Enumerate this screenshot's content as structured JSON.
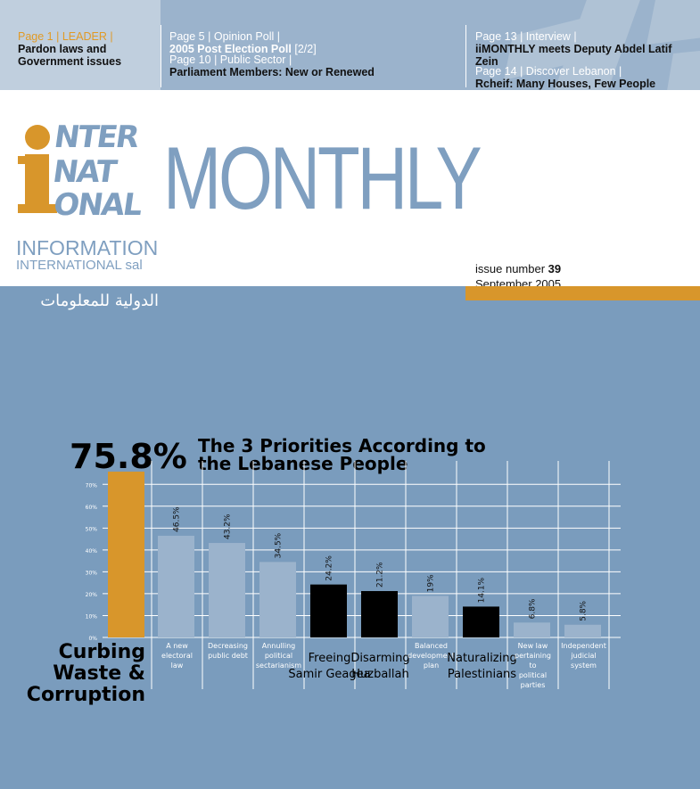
{
  "toc": {
    "item1": {
      "page": "Page 1",
      "section": "LEADER",
      "title": "Pardon laws and Government issues"
    },
    "item2": {
      "page": "Page 5",
      "section": "Opinion Poll",
      "title": "2005 Post Election Poll",
      "part": "[2/2]"
    },
    "item3": {
      "page": "Page 10",
      "section": "Public Sector",
      "title": "Parliament Members: New or Renewed"
    },
    "item4": {
      "page": "Page 13",
      "section": "Interview",
      "title": "iiMONTHLY meets Deputy Abdel Latif Zein"
    },
    "item5": {
      "page": "Page 14",
      "section": "Discover Lebanon",
      "title": "Rcheif: Many Houses, Few People"
    }
  },
  "masthead": {
    "monthly": "MONTHLY",
    "logo_i": "i",
    "logo_lines": [
      "NTER",
      "NAT",
      "ONAL"
    ],
    "info_line1": "INFORMATION",
    "info_line2": "INTERNATIONAL sal",
    "issue_label": "issue number",
    "issue_number": "39",
    "date": "September 2005",
    "arabic": "الدولية للمعلومات"
  },
  "colors": {
    "orange": "#d8962b",
    "blue_bg": "#7a9cbd",
    "bar_light": "#9bb3cc",
    "bar_dark": "#000000"
  },
  "chart_data": {
    "type": "bar",
    "title": "The 3 Priorities According to the Lebanese People",
    "highlight_value": "75.8%",
    "yticks": [
      "0%",
      "10%",
      "20%",
      "30%",
      "40%",
      "50%",
      "60%",
      "70%"
    ],
    "ylim": [
      0,
      80
    ],
    "categories": [
      "Curbing Waste & Corruption",
      "A new electoral law",
      "Decreasing public debt",
      "Annulling political sectarianism",
      "Freeing Samir Geagea",
      "Disarming Huzballah",
      "Balanced development plan",
      "Naturalizing Palestinians",
      "New law pertaining to political parties",
      "Independent judicial system"
    ],
    "values": [
      75.8,
      46.5,
      43.2,
      34.5,
      24.2,
      21.2,
      19,
      14.1,
      6.8,
      5.8
    ],
    "value_labels": [
      "75.8%",
      "46.5%",
      "43.2%",
      "34.5%",
      "24.2%",
      "21.2%",
      "19%",
      "14.1%",
      "6.8%",
      "5.8%"
    ],
    "styles": [
      "orange",
      "light",
      "light",
      "light",
      "dark",
      "dark",
      "light",
      "dark",
      "light",
      "light"
    ]
  }
}
